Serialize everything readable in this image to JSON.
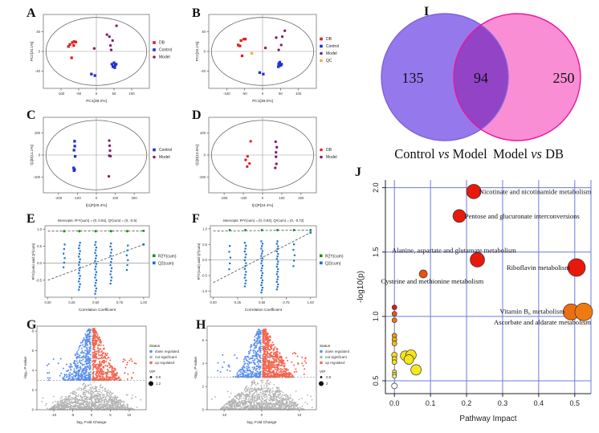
{
  "chart_data": [
    {
      "id": "A",
      "panel_label": "A",
      "type": "scatter",
      "subtype": "score",
      "xlabel": "PC1[38.2%]",
      "ylabel": "PC2[20.1%]",
      "xlim": [
        -150,
        150
      ],
      "ylim": [
        -75,
        75
      ],
      "xticks": [
        "-100",
        "-50",
        "0",
        "50",
        "100"
      ],
      "yticks": [
        "-40",
        "0",
        "40"
      ],
      "series": [
        {
          "name": "DB",
          "color": "#e02020",
          "shape": "square",
          "points": [
            [
              -75,
              14
            ],
            [
              -68,
              18
            ],
            [
              -63,
              20
            ],
            [
              -58,
              19
            ],
            [
              -79,
              10
            ],
            [
              -64,
              12
            ],
            [
              -70,
              -13
            ]
          ]
        },
        {
          "name": "Control",
          "color": "#2130d0",
          "shape": "square",
          "points": [
            [
              44,
              -26
            ],
            [
              50,
              -23
            ],
            [
              53,
              -28
            ],
            [
              47,
              -31
            ],
            [
              52,
              -33
            ],
            [
              56,
              -26
            ],
            [
              -14,
              -46
            ],
            [
              -4,
              -49
            ]
          ]
        },
        {
          "name": "Model",
          "color": "#871b67",
          "shape": "circle",
          "points": [
            [
              57,
              52
            ],
            [
              37,
              30
            ],
            [
              46,
              22
            ],
            [
              40,
              12
            ],
            [
              42,
              3
            ],
            [
              -6,
              6
            ],
            [
              30,
              34
            ]
          ]
        }
      ]
    },
    {
      "id": "B",
      "panel_label": "B",
      "type": "scatter",
      "subtype": "score",
      "xlabel": "PC1[38.0%]",
      "ylabel": "PC2[20.1%]",
      "xlim": [
        -150,
        150
      ],
      "ylim": [
        -75,
        75
      ],
      "xticks": [
        "-100",
        "-50",
        "0",
        "50",
        "100"
      ],
      "yticks": [
        "-40",
        "0",
        "40"
      ],
      "series": [
        {
          "name": "DB",
          "color": "#e02020",
          "shape": "square",
          "points": [
            [
              -60,
              22
            ],
            [
              -52,
              25
            ],
            [
              -48,
              25
            ],
            [
              -68,
              13
            ],
            [
              -63,
              11
            ],
            [
              -57,
              -9
            ]
          ]
        },
        {
          "name": "Control",
          "color": "#2130d0",
          "shape": "square",
          "points": [
            [
              45,
              -25
            ],
            [
              48,
              -22
            ],
            [
              51,
              -28
            ],
            [
              44,
              -31
            ],
            [
              53,
              -26
            ],
            [
              47,
              -29
            ],
            [
              -8,
              -43
            ],
            [
              2,
              -46
            ]
          ]
        },
        {
          "name": "Model",
          "color": "#871b67",
          "shape": "circle",
          "points": [
            [
              62,
              42
            ],
            [
              38,
              28
            ],
            [
              55,
              30
            ],
            [
              52,
              13
            ],
            [
              45,
              3
            ],
            [
              8,
              7
            ]
          ]
        },
        {
          "name": "QC",
          "color": "#f5a623",
          "shape": "circle",
          "points": [
            [
              -30,
              -4
            ]
          ]
        }
      ]
    },
    {
      "id": "C",
      "panel_label": "C",
      "type": "scatter",
      "subtype": "score",
      "xlabel": "t[1]P[20.4%]",
      "ylabel": "t[1]O[11.1%]",
      "xlim": [
        -280,
        280
      ],
      "ylim": [
        -170,
        170
      ],
      "xticks": [
        "-200",
        "-100",
        "0",
        "100",
        "200"
      ],
      "yticks": [
        "-100",
        "0",
        "100"
      ],
      "series": [
        {
          "name": "Control",
          "color": "#2130d0",
          "shape": "square",
          "points": [
            [
              -115,
              62
            ],
            [
              -114,
              40
            ],
            [
              -118,
              22
            ],
            [
              -112,
              -6
            ],
            [
              -120,
              -58
            ],
            [
              -115,
              -65
            ],
            [
              -118,
              -70
            ]
          ]
        },
        {
          "name": "Model",
          "color": "#871b67",
          "shape": "circle",
          "points": [
            [
              68,
              65
            ],
            [
              70,
              42
            ],
            [
              72,
              20
            ],
            [
              68,
              -3
            ],
            [
              75,
              -5
            ],
            [
              66,
              -96
            ]
          ]
        }
      ]
    },
    {
      "id": "D",
      "panel_label": "D",
      "type": "scatter",
      "subtype": "score",
      "xlabel": "t[1]P[24.4%]",
      "ylabel": "t[1]O[10.5%]",
      "xlim": [
        -280,
        280
      ],
      "ylim": [
        -170,
        170
      ],
      "xticks": [
        "-200",
        "-100",
        "0",
        "100",
        "200"
      ],
      "yticks": [
        "-100",
        "0",
        "100"
      ],
      "series": [
        {
          "name": "DB",
          "color": "#e02020",
          "shape": "circle",
          "points": [
            [
              -62,
              62
            ],
            [
              -78,
              -6
            ],
            [
              -88,
              -22
            ],
            [
              -68,
              -38
            ],
            [
              -80,
              -52
            ]
          ]
        },
        {
          "name": "Model",
          "color": "#871b67",
          "shape": "circle",
          "points": [
            [
              68,
              60
            ],
            [
              74,
              35
            ],
            [
              70,
              12
            ],
            [
              70,
              -8
            ],
            [
              72,
              -40
            ],
            [
              66,
              -58
            ]
          ]
        }
      ]
    },
    {
      "id": "E",
      "panel_label": "E",
      "type": "scatter",
      "subtype": "permutation",
      "title": "Intercepts: R²Y(cum) = (0, 0.94), Q²(cum) = (0, -0.5)",
      "xlabel": "Correlation Coefficient",
      "ylabel": "R²Y(cum) and Q²(cum)",
      "xlim": [
        -0.03,
        1.06
      ],
      "ylim": [
        -1.0,
        1.1
      ],
      "xticks": [
        "0.00",
        "0.25",
        "0.50",
        "0.75",
        "1.00"
      ],
      "yticks": [
        "-0.5",
        "0.0",
        "0.5",
        "1.0"
      ],
      "r2y_intercept": 0.94,
      "q2_intercept": -0.5,
      "r2y_final": 0.95,
      "q2_final": 0.55,
      "green_y": 0.94,
      "columns": [
        {
          "x": 0.17,
          "n": 6,
          "min": -0.12,
          "max": 0.55
        },
        {
          "x": 0.33,
          "n": 18,
          "min": -0.78,
          "max": 0.6
        },
        {
          "x": 0.5,
          "n": 20,
          "min": -0.9,
          "max": 0.62
        },
        {
          "x": 0.66,
          "n": 14,
          "min": -0.6,
          "max": 0.58
        },
        {
          "x": 0.83,
          "n": 6,
          "min": -0.2,
          "max": 0.52
        }
      ],
      "legend": [
        {
          "name": "R2Y(cum)",
          "color": "#1e8c1e"
        },
        {
          "name": "Q2(cum)",
          "color": "#1d6fd1"
        }
      ]
    },
    {
      "id": "F",
      "panel_label": "F",
      "type": "scatter",
      "subtype": "permutation",
      "title": "Intercepts: R²Y(cum) = (0, 0.93), Q²(cum) = (0, -0.73)",
      "xlabel": "Correlation Coefficient",
      "ylabel": "R²Y(cum) and Q²(cum)",
      "xlim": [
        -0.03,
        1.06
      ],
      "ylim": [
        -1.2,
        1.1
      ],
      "xticks": [
        "0.00",
        "0.25",
        "0.50",
        "0.75",
        "1.00"
      ],
      "yticks": [
        "-1.0",
        "-0.5",
        "0.0",
        "0.5",
        "1.0"
      ],
      "r2y_intercept": 0.93,
      "q2_intercept": -0.73,
      "r2y_final": 0.96,
      "q2_final": 0.88,
      "green_y": 0.96,
      "columns": [
        {
          "x": 0.17,
          "n": 5,
          "min": -0.3,
          "max": 0.45
        },
        {
          "x": 0.33,
          "n": 16,
          "min": -0.85,
          "max": 0.55
        },
        {
          "x": 0.5,
          "n": 22,
          "min": -1.05,
          "max": 0.6
        },
        {
          "x": 0.66,
          "n": 20,
          "min": -0.95,
          "max": 0.6
        },
        {
          "x": 0.83,
          "n": 5,
          "min": -0.2,
          "max": 0.5
        }
      ],
      "legend": [
        {
          "name": "R2Y(cum)",
          "color": "#1e8c1e"
        },
        {
          "name": "Q2(cum)",
          "color": "#1d6fd1"
        }
      ]
    },
    {
      "id": "G",
      "panel_label": "G",
      "type": "scatter",
      "subtype": "volcano",
      "xlabel": "log₂ Fold Change",
      "ylabel": "-log₁₀ P-value",
      "xlim": [
        -14.5,
        14.5
      ],
      "ylim": [
        0,
        8.5
      ],
      "xticks": [
        "-10",
        "-5",
        "0",
        "5",
        "10"
      ],
      "yticks": [
        "0",
        "2",
        "4",
        "6",
        "8"
      ],
      "threshold": 3.0,
      "seed": 12,
      "gray_n": 950,
      "down_n": 420,
      "up_n": 470,
      "spread_down": 1.0,
      "spread_up": 1.0,
      "colors": {
        "down": "#5a8ff0",
        "ns": "#b3b3b3",
        "up": "#f2654f"
      },
      "legend_status_title": "Status",
      "legend_status": [
        {
          "label": "down regulated",
          "color": "#5a8ff0"
        },
        {
          "label": "not significant",
          "color": "#b3b3b3"
        },
        {
          "label": "up regulated",
          "color": "#f2654f"
        }
      ],
      "legend_vip_title": "VIP",
      "legend_vip": [
        "0.8",
        "1.2"
      ]
    },
    {
      "id": "H",
      "panel_label": "H",
      "type": "scatter",
      "subtype": "volcano",
      "xlabel": "log₂ Fold Change",
      "ylabel": "-log₁₀ P-value",
      "xlim": [
        -14.5,
        14.5
      ],
      "ylim": [
        0,
        7.2
      ],
      "xticks": [
        "-10",
        "0",
        "10"
      ],
      "yticks": [
        "0",
        "2",
        "4",
        "6"
      ],
      "threshold": 2.8,
      "seed": 99,
      "gray_n": 950,
      "down_n": 330,
      "up_n": 640,
      "spread_down": 0.9,
      "spread_up": 1.1,
      "colors": {
        "down": "#5a8ff0",
        "ns": "#b3b3b3",
        "up": "#f2654f"
      },
      "legend_status_title": "Status",
      "legend_status": [
        {
          "label": "down regulated",
          "color": "#5a8ff0"
        },
        {
          "label": "not significant",
          "color": "#b3b3b3"
        },
        {
          "label": "up regulated",
          "color": "#f2654f"
        }
      ],
      "legend_vip_title": "VIP",
      "legend_vip": [
        "0.8",
        "2"
      ]
    },
    {
      "id": "I",
      "panel_label": "I",
      "type": "venn",
      "left": {
        "count": "135",
        "label_parts": [
          "Control",
          "vs",
          "Model"
        ],
        "fill": "#9678ed",
        "stroke": "#7e63da"
      },
      "right": {
        "count": "250",
        "label_parts": [
          "Model",
          "vs",
          "DB"
        ],
        "fill": "#f98ed5",
        "stroke": "#e8169f"
      },
      "overlap_count": "94"
    },
    {
      "id": "J",
      "panel_label": "J",
      "type": "scatter",
      "subtype": "bubble",
      "xlabel": "Pathway Impact",
      "ylabel": "-log10(p)",
      "xlim": [
        -0.025,
        0.545
      ],
      "ylim": [
        0.4,
        2.06
      ],
      "xticks": [
        "0.0",
        "0.1",
        "0.2",
        "0.3",
        "0.4",
        "0.5"
      ],
      "yticks": [
        "0.5",
        "1.0",
        "1.5",
        "2.0"
      ],
      "grid_color": "#6e79dd",
      "bubbles": [
        {
          "x": 0.22,
          "y": 1.97,
          "r": 9,
          "color": "#e8190b"
        },
        {
          "x": 0.18,
          "y": 1.78,
          "r": 8,
          "color": "#e8190b"
        },
        {
          "x": 0.23,
          "y": 1.44,
          "r": 9,
          "color": "#e8190b"
        },
        {
          "x": 0.505,
          "y": 1.38,
          "r": 11,
          "color": "#e8190b"
        },
        {
          "x": 0.08,
          "y": 1.33,
          "r": 5,
          "color": "#f14e0e"
        },
        {
          "x": 0.49,
          "y": 1.035,
          "r": 10,
          "color": "#f06c10"
        },
        {
          "x": 0.525,
          "y": 1.035,
          "r": 11,
          "color": "#f07a12"
        },
        {
          "x": 0.0,
          "y": 1.07,
          "r": 3,
          "color": "#e8190b"
        },
        {
          "x": 0.0,
          "y": 1.02,
          "r": 3,
          "color": "#ef5a0d"
        },
        {
          "x": 0.0,
          "y": 0.97,
          "r": 3,
          "color": "#f0790f"
        },
        {
          "x": 0.0,
          "y": 0.85,
          "r": 3,
          "color": "#f29c12"
        },
        {
          "x": 0.0,
          "y": 0.82,
          "r": 3,
          "color": "#f2ae13"
        },
        {
          "x": 0.0,
          "y": 0.79,
          "r": 3,
          "color": "#f3c014"
        },
        {
          "x": 0.0,
          "y": 0.7,
          "r": 3.5,
          "color": "#f5df16"
        },
        {
          "x": 0.0,
          "y": 0.67,
          "r": 3,
          "color": "#f5e616"
        },
        {
          "x": 0.0,
          "y": 0.645,
          "r": 3,
          "color": "#f5e616"
        },
        {
          "x": 0.03,
          "y": 0.695,
          "r": 6,
          "color": "#f5e31c"
        },
        {
          "x": 0.046,
          "y": 0.7,
          "r": 6.5,
          "color": "#f5e31c"
        },
        {
          "x": 0.04,
          "y": 0.665,
          "r": 6,
          "color": "#f5e616"
        },
        {
          "x": 0.06,
          "y": 0.585,
          "r": 6.5,
          "color": "#f5e81e"
        },
        {
          "x": 0.0,
          "y": 0.57,
          "r": 2.5,
          "color": "#f6ea3a"
        },
        {
          "x": 0.0,
          "y": 0.55,
          "r": 2.5,
          "color": "#f7ee66"
        },
        {
          "x": 0.0,
          "y": 0.535,
          "r": 2.5,
          "color": "#f8f08a"
        },
        {
          "x": 0.0,
          "y": 0.46,
          "r": 3.5,
          "color": "#ffffff"
        }
      ],
      "labels": [
        {
          "text": "Nicotinate and nicotinamide metabolism",
          "x": 0.235,
          "y": 1.97,
          "anchor": "start"
        },
        {
          "text": "Pentose and glucuronate interconversions",
          "x": 0.195,
          "y": 1.78,
          "anchor": "start"
        },
        {
          "text": "Alanine, aspartate and glutamate metabolism",
          "x": 0.165,
          "y": 1.515,
          "anchor": "middle"
        },
        {
          "text": "Riboflavin metabolism",
          "x": 0.487,
          "y": 1.38,
          "anchor": "end"
        },
        {
          "text": "Cysteine and methionine metabolism",
          "x": 0.105,
          "y": 1.275,
          "anchor": "middle"
        },
        {
          "text": "Vitamin B₆ metabolism",
          "x": 0.472,
          "y": 1.04,
          "anchor": "end"
        },
        {
          "text": "Ascorbate and aldarate metabolism",
          "x": 0.545,
          "y": 0.955,
          "anchor": "end"
        }
      ]
    }
  ]
}
